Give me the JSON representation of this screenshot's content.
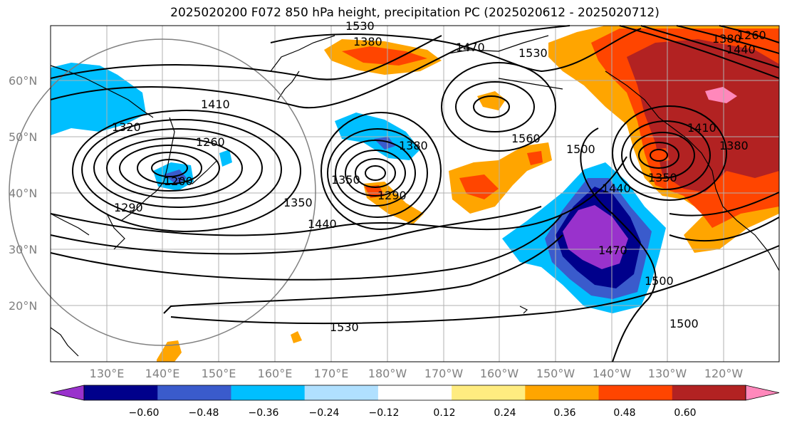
{
  "title": "2025020200 F072 850 hPa height, precipitation PC (2025020612 - 2025020712)",
  "lat_labels": [
    "60°N",
    "50°N",
    "40°N",
    "30°N",
    "20°N"
  ],
  "lon_labels": [
    "130°E",
    "140°E",
    "150°E",
    "160°E",
    "170°E",
    "180°W",
    "170°W",
    "160°W",
    "150°W",
    "140°W",
    "130°W",
    "120°W"
  ],
  "contour_labels": [
    "1530",
    "1380",
    "1470",
    "1530",
    "1410",
    "1320",
    "1260",
    "1200",
    "1290",
    "1350",
    "1440",
    "1380",
    "1350",
    "1290",
    "1560",
    "1500",
    "1440",
    "1470",
    "1500",
    "1530",
    "1500",
    "1380",
    "1440",
    "1410",
    "1380",
    "1350",
    "1260"
  ],
  "colorbar": {
    "ticks": [
      "−0.60",
      "−0.48",
      "−0.36",
      "−0.24",
      "−0.12",
      "0.12",
      "0.24",
      "0.36",
      "0.48",
      "0.60"
    ],
    "colors": [
      "#9932cc",
      "#00008b",
      "#3a5bcc",
      "#00bfff",
      "#b0e0ff",
      "#ffffff",
      "#ffec80",
      "#ffa500",
      "#ff4500",
      "#b22222",
      "#ff88bb"
    ]
  }
}
